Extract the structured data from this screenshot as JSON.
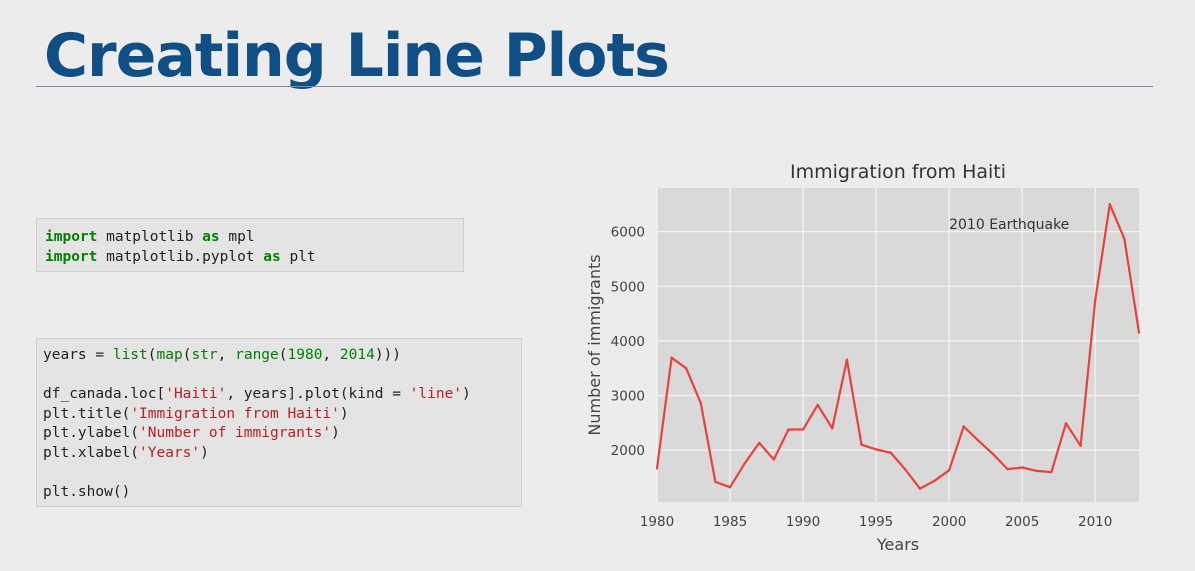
{
  "slide": {
    "title": "Creating Line Plots"
  },
  "code_cell_1": [
    [
      [
        "kw",
        "import"
      ],
      [
        "t",
        " matplotlib "
      ],
      [
        "kw",
        "as"
      ],
      [
        "t",
        " mpl"
      ]
    ],
    [
      [
        "kw",
        "import"
      ],
      [
        "t",
        " matplotlib.pyplot "
      ],
      [
        "kw",
        "as"
      ],
      [
        "t",
        " plt"
      ]
    ]
  ],
  "code_cell_2": [
    [
      [
        "t",
        "years = "
      ],
      [
        "bi",
        "list"
      ],
      [
        "t",
        "("
      ],
      [
        "bi",
        "map"
      ],
      [
        "t",
        "("
      ],
      [
        "bi",
        "str"
      ],
      [
        "t",
        ", "
      ],
      [
        "bi",
        "range"
      ],
      [
        "t",
        "("
      ],
      [
        "num",
        "1980"
      ],
      [
        "t",
        ", "
      ],
      [
        "num",
        "2014"
      ],
      [
        "t",
        ")))"
      ]
    ],
    [],
    [
      [
        "t",
        "df_canada.loc["
      ],
      [
        "str",
        "'Haiti'"
      ],
      [
        "t",
        ", years].plot(kind = "
      ],
      [
        "str",
        "'line'"
      ],
      [
        "t",
        ")"
      ]
    ],
    [
      [
        "t",
        "plt.title("
      ],
      [
        "str",
        "'Immigration from Haiti'"
      ],
      [
        "t",
        ")"
      ]
    ],
    [
      [
        "t",
        "plt.ylabel("
      ],
      [
        "str",
        "'Number of immigrants'"
      ],
      [
        "t",
        ")"
      ]
    ],
    [
      [
        "t",
        "plt.xlabel("
      ],
      [
        "str",
        "'Years'"
      ],
      [
        "t",
        ")"
      ]
    ],
    [],
    [
      [
        "t",
        "plt.show()"
      ]
    ]
  ],
  "chart_data": {
    "type": "line",
    "title": "Immigration from Haiti",
    "xlabel": "Years",
    "ylabel": "Number of immigrants",
    "x": [
      1980,
      1981,
      1982,
      1983,
      1984,
      1985,
      1986,
      1987,
      1988,
      1989,
      1990,
      1991,
      1992,
      1993,
      1994,
      1995,
      1996,
      1997,
      1998,
      1999,
      2000,
      2001,
      2002,
      2003,
      2004,
      2005,
      2006,
      2007,
      2008,
      2009,
      2010,
      2011,
      2012,
      2013
    ],
    "series": [
      {
        "values": [
          1666,
          3692,
          3498,
          2860,
          1418,
          1321,
          1753,
          2132,
          1829,
          2377,
          2379,
          2829,
          2399,
          3655,
          2100,
          2014,
          1955,
          1645,
          1295,
          1439,
          1631,
          2433,
          2174,
          1930,
          1652,
          1682,
          1619,
          1598,
          2491,
          2080,
          4744,
          6503,
          5868,
          4152
        ]
      }
    ],
    "xlim": [
      1980,
      2013
    ],
    "ylim": [
      1050,
      6800
    ],
    "xticks": [
      1980,
      1985,
      1990,
      1995,
      2000,
      2005,
      2010
    ],
    "yticks": [
      2000,
      3000,
      4000,
      5000,
      6000
    ],
    "annotations": [
      {
        "text": "2010 Earthquake",
        "x": 2000,
        "y": 6050
      }
    ],
    "grid": true,
    "colors": {
      "line": "#e8423a",
      "plot_bg": "#d9d9d9",
      "grid": "#f5f5f5",
      "text": "#444444"
    }
  }
}
